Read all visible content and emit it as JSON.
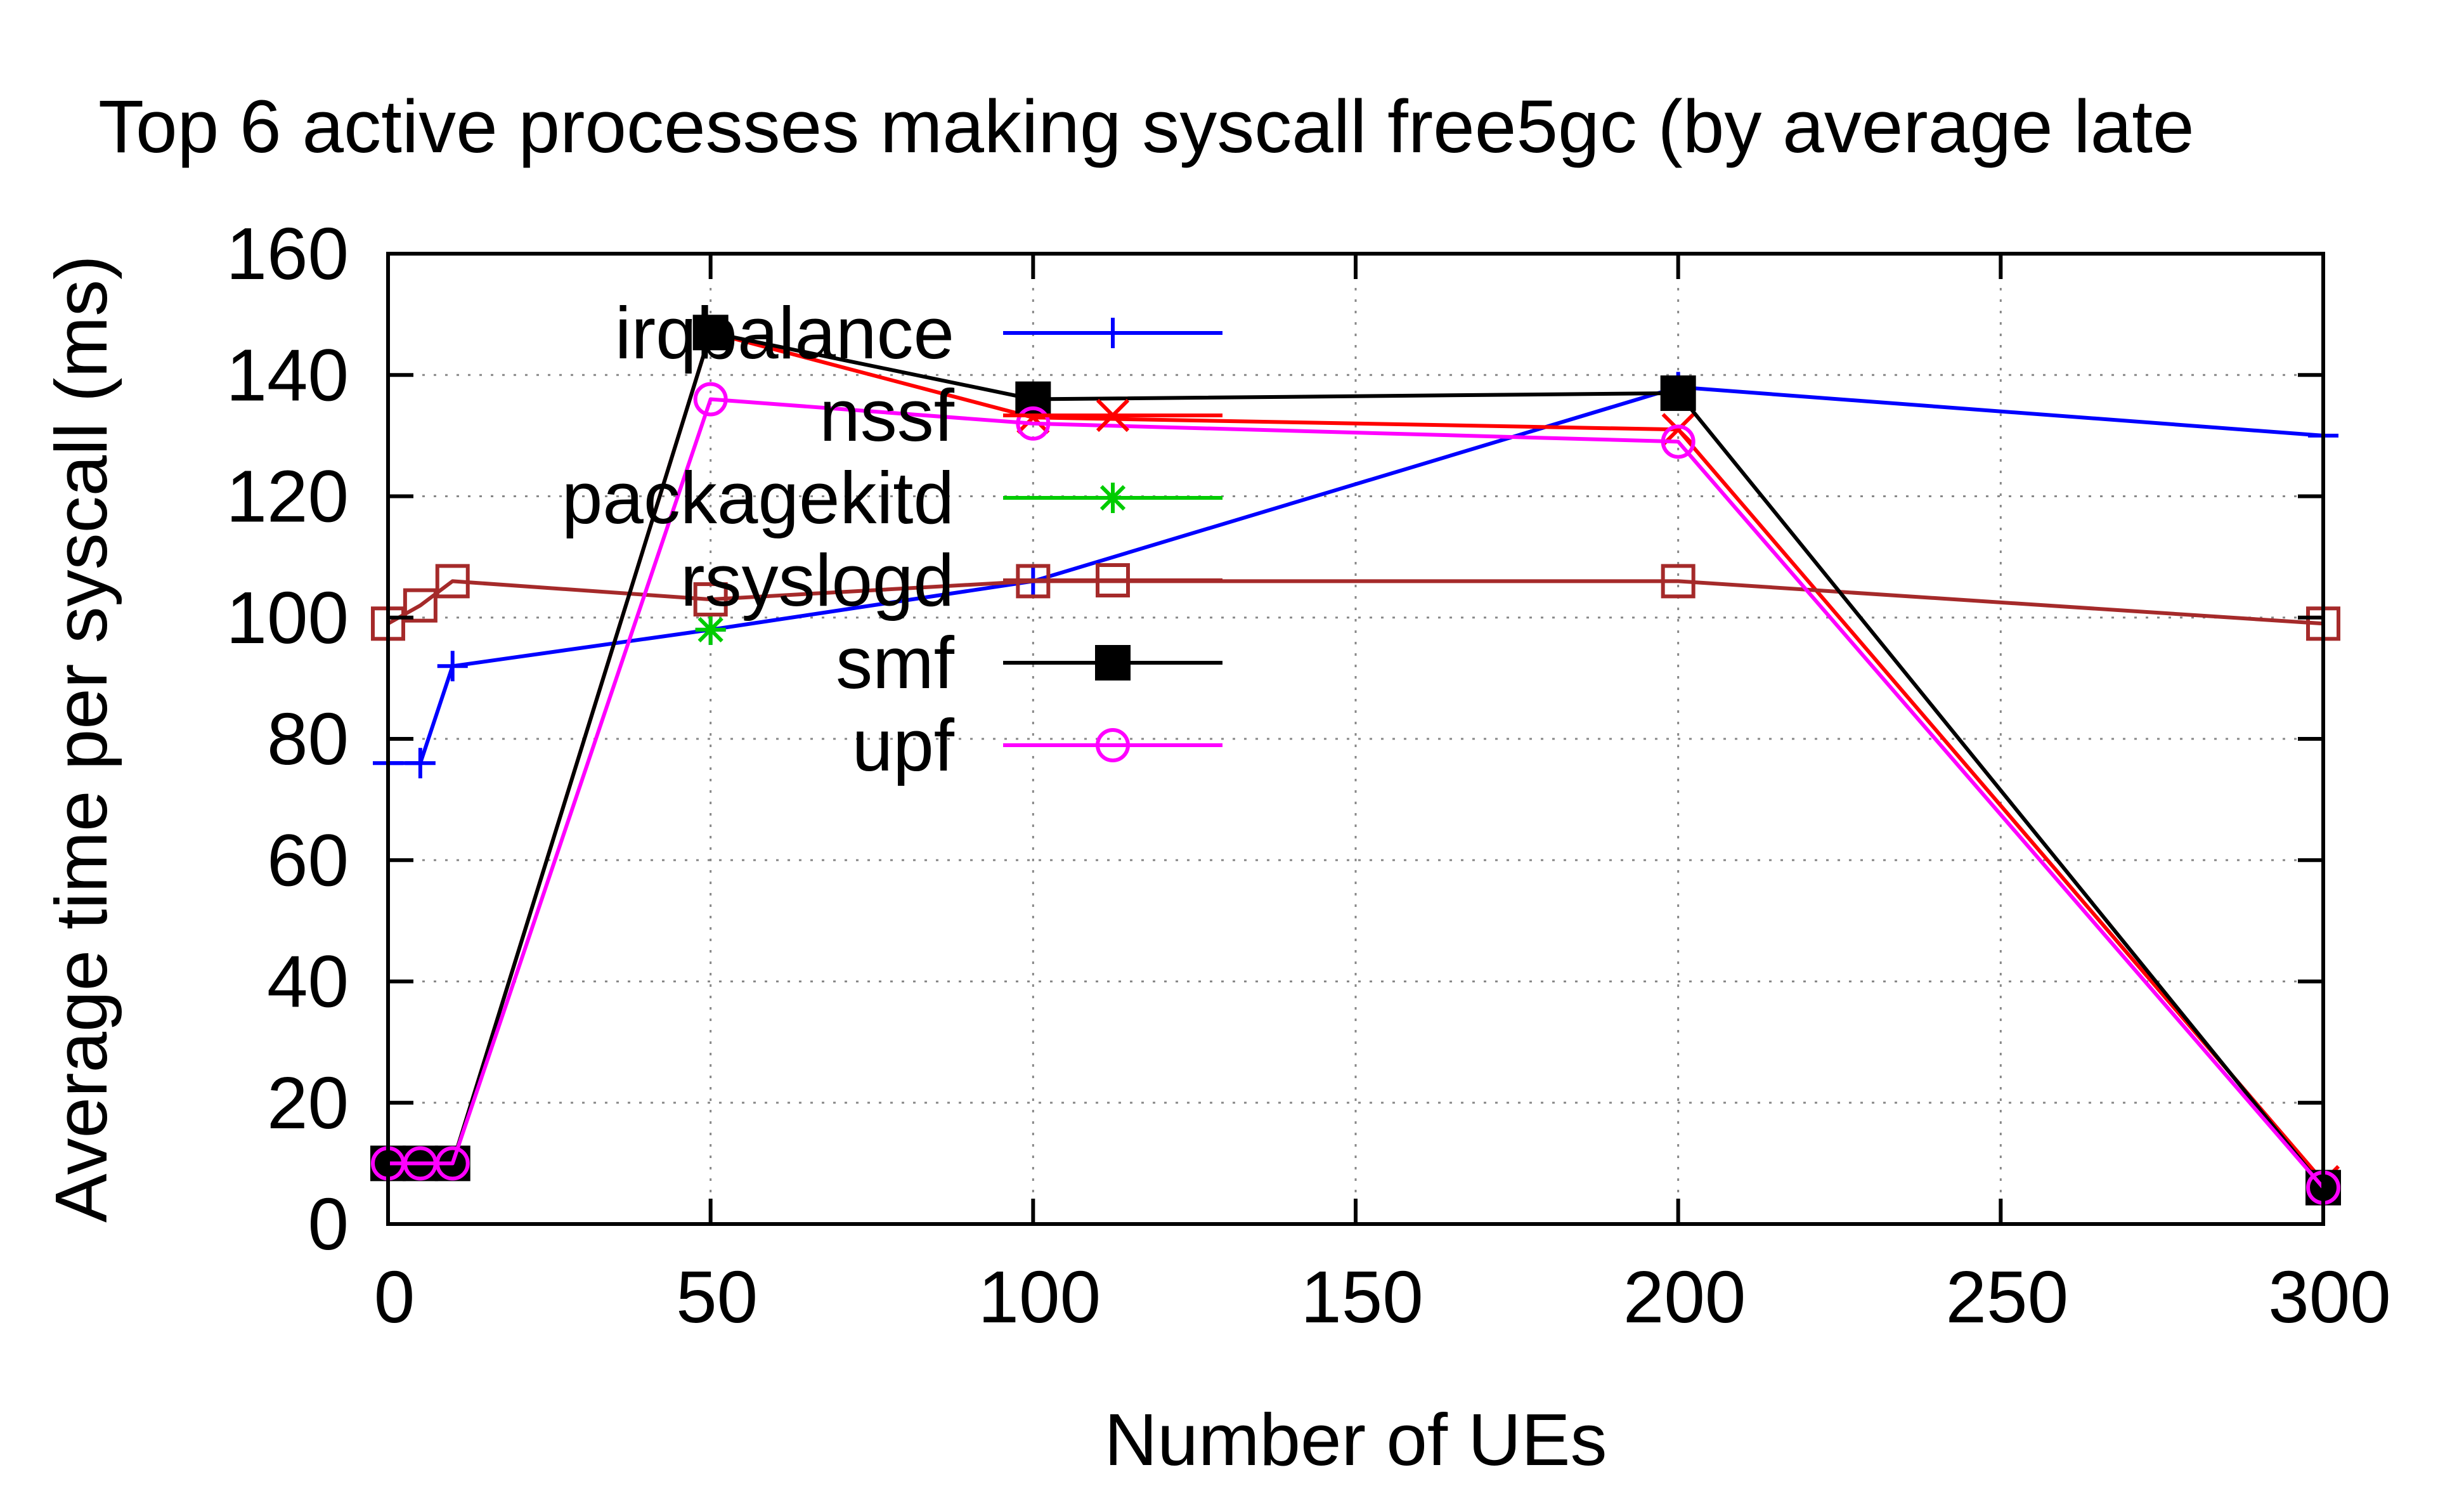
{
  "chart_data": {
    "type": "line",
    "title": "Top 6 active processes making syscall free5gc (by average late",
    "xlabel": "Number of UEs",
    "ylabel": "Average time per syscall (ms)",
    "xlim": [
      0,
      300
    ],
    "ylim": [
      0,
      160
    ],
    "xticks": [
      "0",
      "50",
      "100",
      "150",
      "200",
      "250",
      "300"
    ],
    "yticks": [
      "0",
      "20",
      "40",
      "60",
      "80",
      "100",
      "120",
      "140",
      "160"
    ],
    "grid": true,
    "legend_position": "top-left inside",
    "series": [
      {
        "name": "irqbalance",
        "color": "#0000ff",
        "marker": "plus",
        "points": [
          [
            0,
            76
          ],
          [
            5,
            76
          ],
          [
            10,
            92
          ],
          [
            50,
            98
          ],
          [
            100,
            106
          ],
          [
            200,
            138
          ],
          [
            300,
            130
          ]
        ]
      },
      {
        "name": "nssf",
        "color": "#ff0000",
        "marker": "cross",
        "points": [
          [
            0,
            10
          ],
          [
            5,
            10
          ],
          [
            10,
            10
          ],
          [
            50,
            147
          ],
          [
            100,
            133
          ],
          [
            200,
            131
          ],
          [
            300,
            7
          ]
        ]
      },
      {
        "name": "packagekitd",
        "color": "#00cc00",
        "marker": "star",
        "points": [
          [
            50,
            98
          ]
        ]
      },
      {
        "name": "rsyslogd",
        "color": "#a52a2a",
        "marker": "open-square",
        "points": [
          [
            0,
            99
          ],
          [
            5,
            102
          ],
          [
            10,
            106
          ],
          [
            50,
            103
          ],
          [
            100,
            106
          ],
          [
            200,
            106
          ],
          [
            300,
            99
          ]
        ]
      },
      {
        "name": "smf",
        "color": "#000000",
        "marker": "filled-square",
        "points": [
          [
            0,
            10
          ],
          [
            5,
            10
          ],
          [
            10,
            10
          ],
          [
            50,
            147
          ],
          [
            100,
            136
          ],
          [
            200,
            137
          ],
          [
            300,
            6
          ]
        ]
      },
      {
        "name": "upf",
        "color": "#ff00ff",
        "marker": "open-circle",
        "points": [
          [
            0,
            10
          ],
          [
            5,
            10
          ],
          [
            10,
            10
          ],
          [
            50,
            136
          ],
          [
            100,
            132
          ],
          [
            200,
            129
          ],
          [
            300,
            6
          ]
        ]
      }
    ]
  }
}
